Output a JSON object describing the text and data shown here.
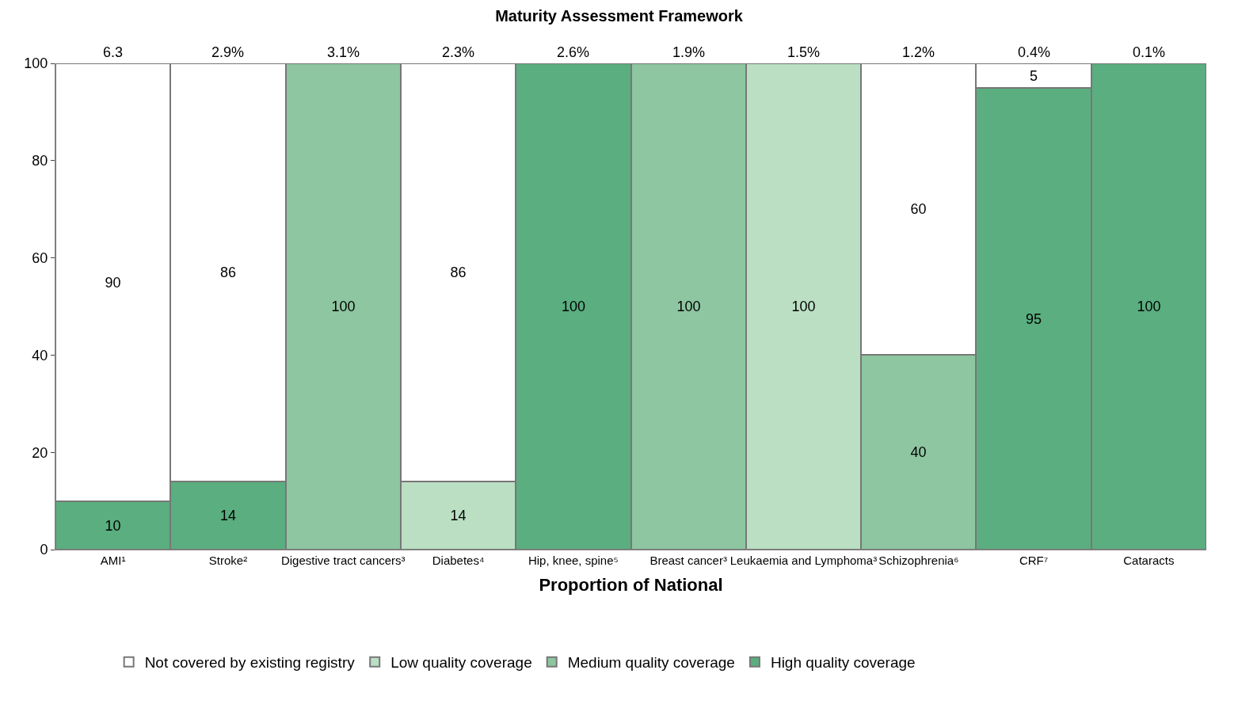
{
  "chart_data": {
    "type": "bar",
    "stacked": true,
    "title": "Maturity Assessment Framework",
    "xlabel": "Proportion of National",
    "categories": [
      "AMI¹",
      "Stroke²",
      "Digestive tract cancers³",
      "Diabetes⁴",
      "Hip, knee, spine⁵",
      "Breast cancer³",
      "Leukaemia and Lymphoma³",
      "Schizophrenia⁶",
      "CRF⁷",
      "Cataracts"
    ],
    "series": [
      {
        "name": "High quality coverage",
        "color": "#5aae7f",
        "values": [
          10,
          14,
          null,
          null,
          100,
          null,
          null,
          null,
          95,
          100
        ]
      },
      {
        "name": "Medium quality coverage",
        "color": "#8dc6a0",
        "values": [
          null,
          null,
          100,
          null,
          null,
          100,
          null,
          40,
          null,
          null
        ]
      },
      {
        "name": "Low quality coverage",
        "color": "#bbdfc3",
        "values": [
          null,
          null,
          null,
          14,
          null,
          null,
          100,
          null,
          null,
          null
        ]
      },
      {
        "name": "Not covered by existing registry",
        "color": "#ffffff",
        "values": [
          90,
          86,
          null,
          86,
          null,
          null,
          null,
          60,
          5,
          null
        ]
      }
    ],
    "ylim": [
      0,
      100
    ],
    "yticks": [
      0,
      20,
      40,
      60,
      80,
      100
    ],
    "legend": "bottom",
    "data_labels": true,
    "annotations": [
      {
        "text": "6.3",
        "x": "AMI¹",
        "y": 100
      },
      {
        "text": "2.9%",
        "x": "Stroke²",
        "y": 100
      },
      {
        "text": "3.1%",
        "x": "Digestive tract cancers³",
        "y": 100
      },
      {
        "text": "2.3%",
        "x": "Diabetes⁴",
        "y": 100
      },
      {
        "text": "2.6%",
        "x": "Hip, knee, spine⁵",
        "y": 100
      },
      {
        "text": "1.9%",
        "x": "Breast cancer³",
        "y": 100
      },
      {
        "text": "1.5%",
        "x": "Leukaemia and Lymphoma³",
        "y": 100
      },
      {
        "text": "1.2%",
        "x": "Schizophrenia⁶",
        "y": 100
      },
      {
        "text": "0.4%",
        "x": "CRF⁷",
        "y": 100
      },
      {
        "text": "0.1%",
        "x": "Cataracts",
        "y": 100
      }
    ]
  }
}
